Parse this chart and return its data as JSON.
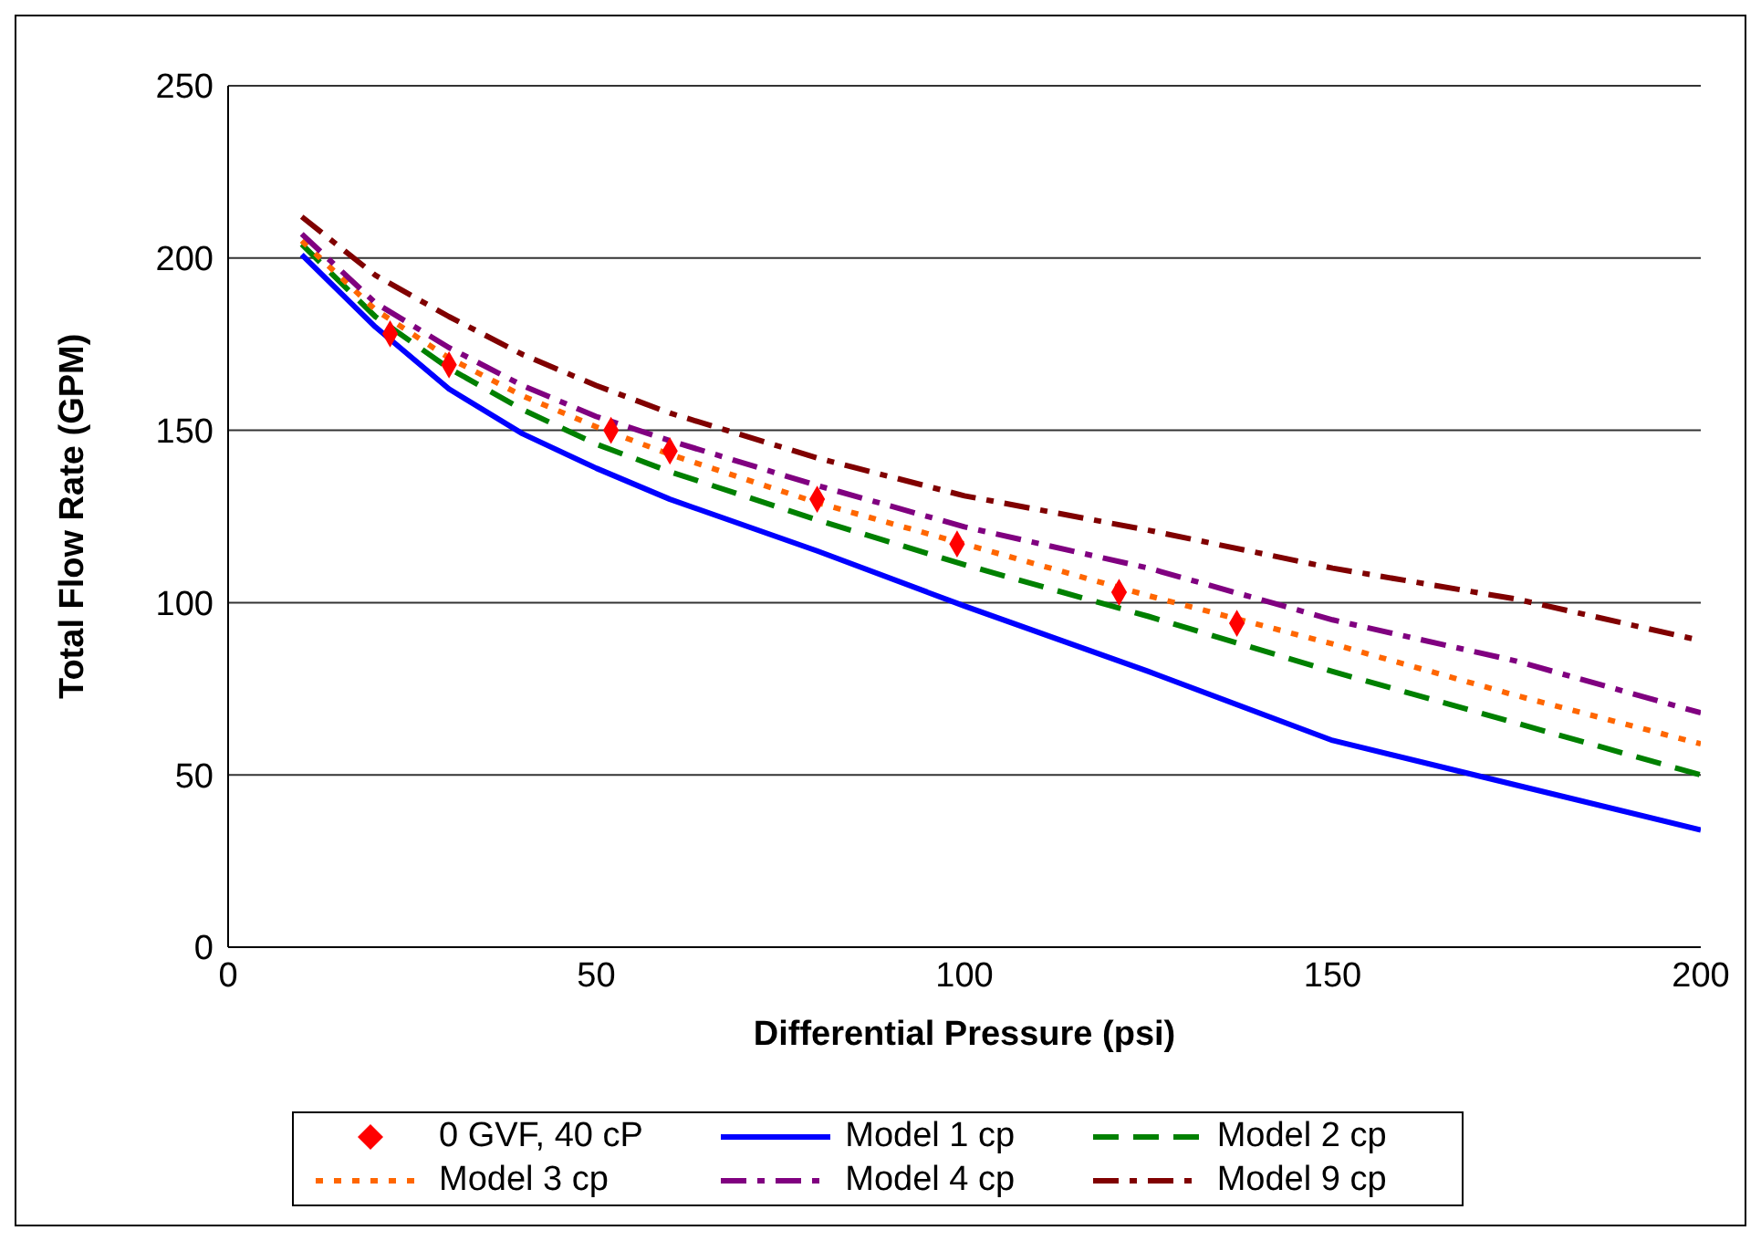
{
  "chart_data": {
    "type": "line",
    "xlabel": "Differential Pressure (psi)",
    "ylabel": "Total Flow Rate (GPM)",
    "xlim": [
      0,
      200
    ],
    "xticks": [
      0,
      50,
      100,
      150,
      200
    ],
    "ylim": [
      0,
      250
    ],
    "yticks": [
      0,
      50,
      100,
      150,
      200,
      250
    ],
    "grid": "y",
    "legend": "bottom",
    "series": [
      {
        "name": "0 GVF, 40 cP",
        "type": "scatter",
        "marker": "diamond",
        "color": "#ff0000",
        "x": [
          22,
          30,
          52,
          60,
          80,
          99,
          121,
          137
        ],
        "values": [
          178,
          169,
          150,
          144,
          130,
          117,
          103,
          94
        ]
      },
      {
        "name": "Model 1 cp",
        "type": "line",
        "line_style": "solid",
        "color": "#0000ff",
        "x": [
          10,
          20,
          30,
          40,
          50,
          60,
          80,
          100,
          125,
          150,
          175,
          200
        ],
        "values": [
          201,
          180,
          162,
          149,
          139,
          130,
          115,
          99,
          80,
          60,
          47,
          34
        ]
      },
      {
        "name": "Model 2 cp",
        "type": "line",
        "line_style": "dashed",
        "color": "#008000",
        "x": [
          10,
          20,
          30,
          40,
          50,
          60,
          80,
          100,
          125,
          150,
          175,
          200
        ],
        "values": [
          204,
          183,
          168,
          156,
          146,
          138,
          124,
          111,
          96,
          80,
          65,
          50
        ]
      },
      {
        "name": "Model 3 cp",
        "type": "line",
        "line_style": "dotted",
        "color": "#ff6600",
        "x": [
          10,
          20,
          30,
          40,
          50,
          60,
          80,
          100,
          125,
          150,
          175,
          200
        ],
        "values": [
          205,
          185,
          171,
          160,
          151,
          143,
          129,
          117,
          102,
          88,
          73,
          59
        ]
      },
      {
        "name": "Model 4 cp",
        "type": "line",
        "line_style": "dashdot",
        "color": "#800080",
        "x": [
          10,
          20,
          30,
          40,
          50,
          60,
          80,
          100,
          125,
          150,
          175,
          200
        ],
        "values": [
          207,
          187,
          174,
          163,
          154,
          147,
          134,
          122,
          110,
          95,
          83,
          68
        ]
      },
      {
        "name": "Model 9 cp",
        "type": "line",
        "line_style": "dashdot",
        "color": "#800000",
        "x": [
          10,
          20,
          30,
          40,
          50,
          60,
          80,
          100,
          125,
          150,
          175,
          200
        ],
        "values": [
          212,
          195,
          183,
          172,
          163,
          155,
          142,
          131,
          121,
          110,
          101,
          89
        ]
      }
    ]
  }
}
